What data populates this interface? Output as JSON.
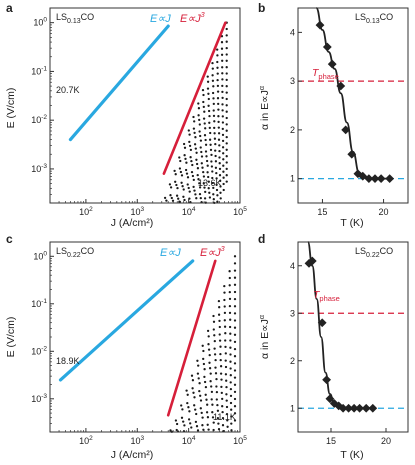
{
  "colors": {
    "ohmic_fit": "#29a8e0",
    "cubic_fit": "#d61f3a",
    "t_phase_line": "#d61f3a",
    "ohmic_reference": "#29a8e0",
    "data": "#1a1a1a"
  },
  "chart_data": [
    {
      "panel": "a",
      "type": "scatter",
      "sample": "LS",
      "sample_sub": "0.13",
      "sample_tail": "CO",
      "xlabel": "J (A/cm²)",
      "ylabel": "E (V/cm)",
      "xscale": "log",
      "yscale": "log",
      "xlim": [
        20,
        100000
      ],
      "ylim": [
        0.0002,
        2
      ],
      "xticks": [
        {
          "value": 100,
          "base": "10",
          "exp": "2"
        },
        {
          "value": 1000,
          "base": "10",
          "exp": "3"
        },
        {
          "value": 10000,
          "base": "10",
          "exp": "4"
        },
        {
          "value": 100000,
          "base": "10",
          "exp": "5"
        }
      ],
      "yticks": [
        {
          "value": 0.001,
          "base": "10",
          "exp": "-3"
        },
        {
          "value": 0.01,
          "base": "10",
          "exp": "-2"
        },
        {
          "value": 0.1,
          "base": "10",
          "exp": "-1"
        },
        {
          "value": 1,
          "base": "10",
          "exp": "0"
        }
      ],
      "t_high_label": "20.7K",
      "t_low_label": "13.6K",
      "fit_ohmic_label": "E∝J",
      "fit_cubic_label": "E∝J",
      "fit_cubic_exp": "3",
      "fit_ohmic": {
        "x": [
          50,
          4000
        ],
        "y": [
          0.004,
          0.85
        ]
      },
      "fit_cubic": {
        "x": [
          3300,
          52000
        ],
        "y": [
          0.0008,
          1.0
        ]
      },
      "series_curves": {
        "count": 26,
        "x_start_range": [
          50,
          2000
        ],
        "x_end": 55000,
        "y_end_range": [
          1.0,
          0.00055
        ],
        "left_y_at_start": 0.0035,
        "flat_slope": 1.05,
        "knee_range": [
          3000,
          40000
        ],
        "knee_steepness": 3.0
      }
    },
    {
      "panel": "b",
      "type": "line",
      "sample": "LS",
      "sample_sub": "0.13",
      "sample_tail": "CO",
      "xlabel": "T (K)",
      "ylabel": "α in E∝J",
      "ylabel_exp": "α",
      "xlim": [
        13,
        22
      ],
      "ylim": [
        0.5,
        4.5
      ],
      "xticks": [
        15,
        20
      ],
      "yticks": [
        1,
        2,
        3,
        4
      ],
      "t_phase_label": "T",
      "t_phase_sub": "phase",
      "hlines": [
        3,
        1
      ],
      "points": {
        "x": [
          14.8,
          15.4,
          15.8,
          16.5,
          16.9,
          17.4,
          17.9,
          18.3,
          18.8,
          19.3,
          19.8,
          20.5
        ],
        "y": [
          4.15,
          3.7,
          3.35,
          2.9,
          2.0,
          1.5,
          1.1,
          1.05,
          1.0,
          1.0,
          1.0,
          1.0
        ]
      },
      "fit": {
        "x": [
          14.5,
          15.0,
          15.5,
          16.0,
          16.5,
          17.0,
          17.5,
          18.0,
          18.5,
          19.0,
          20.0,
          20.6
        ],
        "y": [
          4.6,
          4.05,
          3.6,
          3.25,
          2.75,
          2.15,
          1.55,
          1.12,
          1.03,
          1.0,
          1.0,
          1.0
        ]
      }
    },
    {
      "panel": "c",
      "type": "scatter",
      "sample": "LS",
      "sample_sub": "0.22",
      "sample_tail": "CO",
      "xlabel": "J (A/cm²)",
      "ylabel": "E (V/cm)",
      "xscale": "log",
      "yscale": "log",
      "xlim": [
        20,
        100000
      ],
      "ylim": [
        0.0002,
        2
      ],
      "xticks": [
        {
          "value": 100,
          "base": "10",
          "exp": "2"
        },
        {
          "value": 1000,
          "base": "10",
          "exp": "3"
        },
        {
          "value": 10000,
          "base": "10",
          "exp": "4"
        },
        {
          "value": 100000,
          "base": "10",
          "exp": "5"
        }
      ],
      "yticks": [
        {
          "value": 0.001,
          "base": "10",
          "exp": "-3"
        },
        {
          "value": 0.01,
          "base": "10",
          "exp": "-2"
        },
        {
          "value": 0.1,
          "base": "10",
          "exp": "-1"
        },
        {
          "value": 1,
          "base": "10",
          "exp": "0"
        }
      ],
      "t_high_label": "18.9K",
      "t_low_label": "11.1K",
      "fit_ohmic_label": "E∝J",
      "fit_cubic_label": "E∝J",
      "fit_cubic_exp": "3",
      "fit_ohmic": {
        "x": [
          32,
          12000
        ],
        "y": [
          0.0025,
          0.8
        ]
      },
      "fit_cubic": {
        "x": [
          4000,
          33000
        ],
        "y": [
          0.00045,
          0.8
        ]
      },
      "series_curves": {
        "count": 24,
        "x_start_range": [
          28,
          1500
        ],
        "x_end": 80000,
        "y_end_range": [
          1.0,
          0.00035
        ],
        "left_y_at_start": 0.0022,
        "flat_slope": 1.0,
        "knee_range": [
          5000,
          60000
        ],
        "knee_steepness": 3.0
      }
    },
    {
      "panel": "d",
      "type": "line",
      "sample": "LS",
      "sample_sub": "0.22",
      "sample_tail": "CO",
      "xlabel": "T (K)",
      "ylabel": "α in E∝J",
      "ylabel_exp": "α",
      "xlim": [
        12,
        22
      ],
      "ylim": [
        0.5,
        4.5
      ],
      "xticks": [
        15,
        20
      ],
      "yticks": [
        1,
        2,
        3,
        4
      ],
      "t_phase_label": "T",
      "t_phase_sub": "phase",
      "hlines": [
        3,
        1
      ],
      "points": {
        "x": [
          13.0,
          13.3,
          14.2,
          14.6,
          14.9,
          15.3,
          15.7,
          16.1,
          16.6,
          17.1,
          17.6,
          18.2,
          18.8
        ],
        "y": [
          4.05,
          4.1,
          2.8,
          1.6,
          1.2,
          1.1,
          1.05,
          1.0,
          1.0,
          1.0,
          1.0,
          1.0,
          1.0
        ]
      },
      "fit": {
        "x": [
          12.9,
          13.3,
          13.7,
          14.1,
          14.5,
          14.9,
          15.3,
          16.0,
          17.0,
          19.0
        ],
        "y": [
          4.55,
          4.0,
          3.3,
          2.5,
          1.75,
          1.3,
          1.1,
          1.02,
          1.0,
          1.0
        ]
      }
    }
  ]
}
